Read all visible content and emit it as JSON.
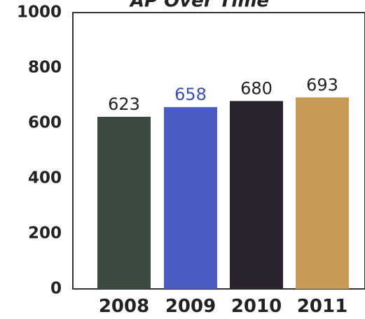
{
  "chart_data": {
    "type": "bar",
    "title": "AP Over Time",
    "categories": [
      "2008",
      "2009",
      "2010",
      "2011"
    ],
    "values": [
      623,
      658,
      680,
      693
    ],
    "value_labels": [
      "623",
      "658",
      "680",
      "693"
    ],
    "value_label_colors": [
      "#222222",
      "#3b4fb0",
      "#222222",
      "#222222"
    ],
    "colors": [
      "#3b4a3f",
      "#4a5cc4",
      "#2b2230",
      "#c49a55"
    ],
    "ylim": [
      0,
      1000
    ],
    "yticks": [
      0,
      200,
      400,
      600,
      800,
      1000
    ],
    "ytick_labels": [
      "0",
      "200",
      "400",
      "600",
      "800",
      "1000"
    ],
    "xlabel": "",
    "ylabel": "",
    "grid": false
  }
}
